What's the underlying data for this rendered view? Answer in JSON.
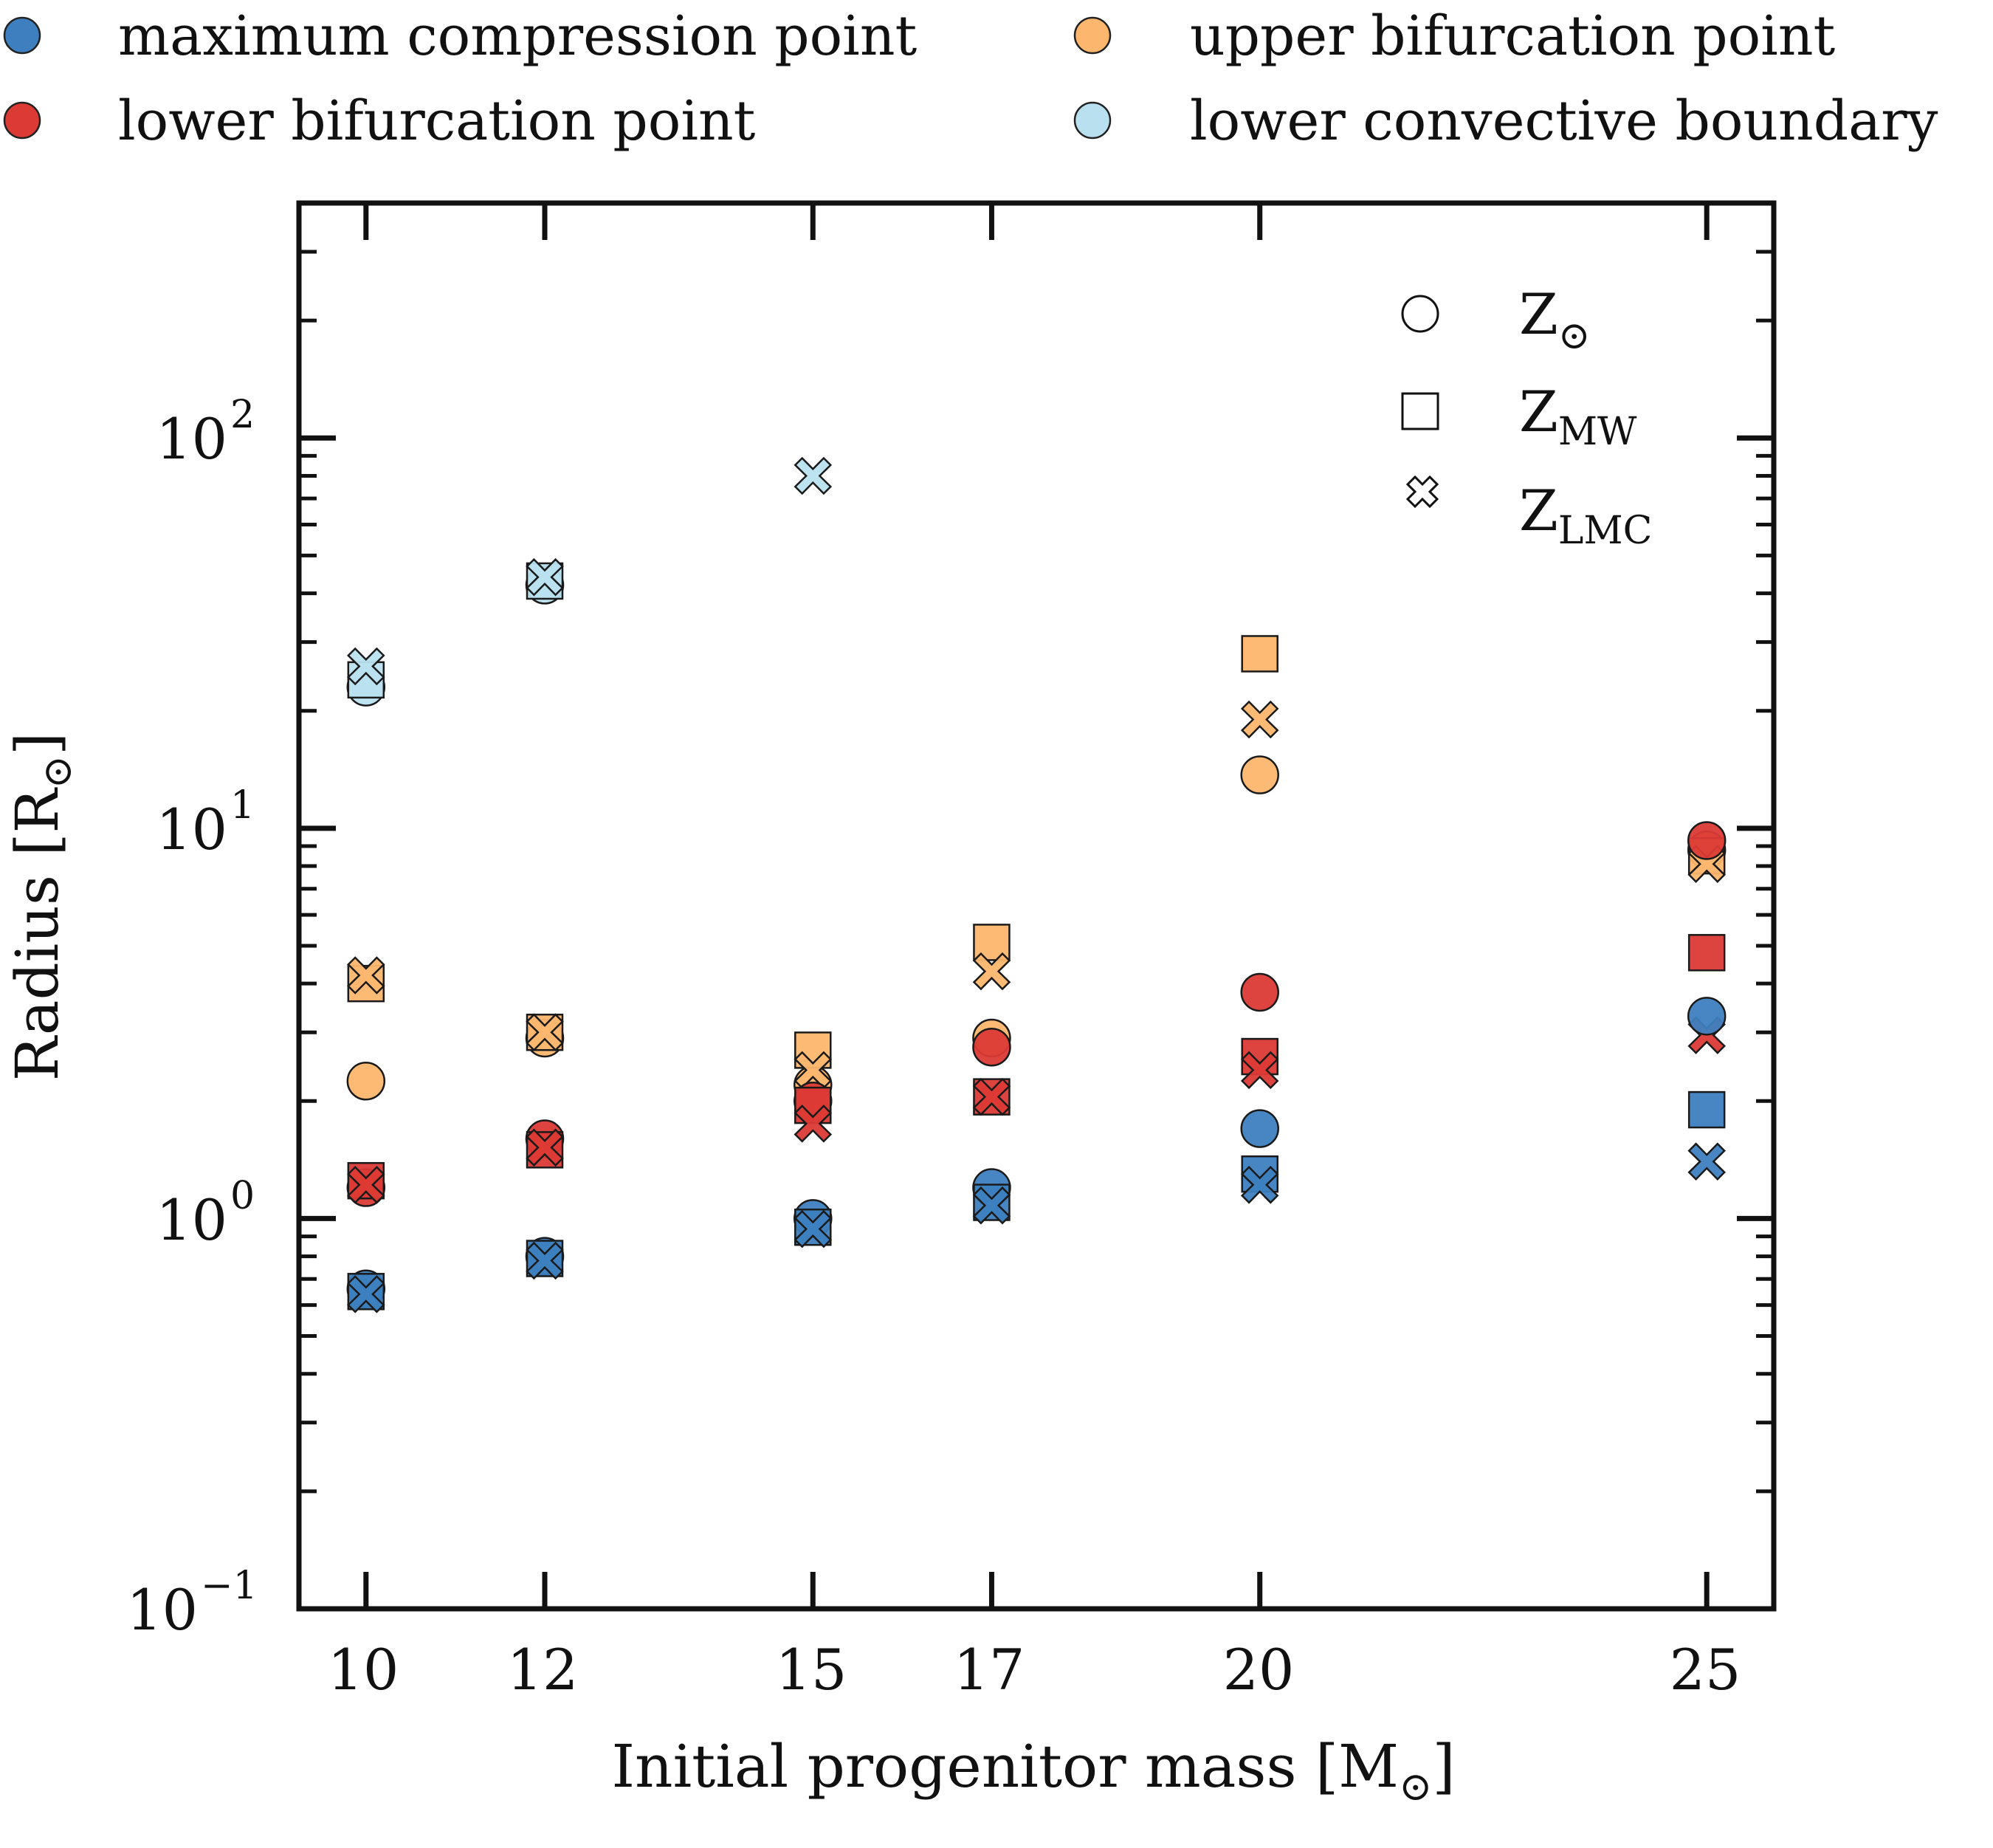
{
  "chart_data": {
    "type": "scatter",
    "xlabel_main": "Initial progenitor mass [M",
    "xlabel_sub": "⊙",
    "xlabel_close": "]",
    "ylabel_main": "Radius [R",
    "ylabel_sub": "⊙",
    "ylabel_close": "]",
    "xscale": "linear",
    "yscale": "log",
    "xlim": [
      9.25,
      25.75
    ],
    "ylim": [
      0.1,
      400
    ],
    "xticks": [
      10,
      12,
      15,
      17,
      20,
      25
    ],
    "xtick_labels": [
      "10",
      "12",
      "15",
      "17",
      "20",
      "25"
    ],
    "yticks_major": [
      {
        "value": 0.1,
        "base": "10",
        "exp": "−1"
      },
      {
        "value": 1,
        "base": "10",
        "exp": "0"
      },
      {
        "value": 10,
        "base": "10",
        "exp": "1"
      },
      {
        "value": 100,
        "base": "10",
        "exp": "2"
      }
    ],
    "legend_colors": {
      "placement": "above-plot",
      "entries": [
        {
          "label": "maximum compression point",
          "color": "#3d7fbf"
        },
        {
          "label": "upper bifurcation point",
          "color": "#fdb66e"
        },
        {
          "label": "lower bifurcation point",
          "color": "#dc3a35"
        },
        {
          "label": "lower convective boundary",
          "color": "#b9e0ef"
        }
      ]
    },
    "legend_markers": {
      "placement": "top-right",
      "entries": [
        {
          "marker": "circle",
          "label": "Z",
          "sub": "⊙"
        },
        {
          "marker": "square",
          "label": "Z",
          "sub": "MW"
        },
        {
          "marker": "cross",
          "label": "Z",
          "sub": "LMC"
        }
      ]
    },
    "series": [
      {
        "name": "lower convective boundary",
        "color": "#b9e0ef",
        "points": [
          {
            "x": 10,
            "y": 23,
            "m": "circle"
          },
          {
            "x": 10,
            "y": 24,
            "m": "square"
          },
          {
            "x": 10,
            "y": 26,
            "m": "cross"
          },
          {
            "x": 12,
            "y": 42,
            "m": "circle"
          },
          {
            "x": 12,
            "y": 43,
            "m": "square"
          },
          {
            "x": 12,
            "y": 44,
            "m": "cross"
          },
          {
            "x": 15,
            "y": 80,
            "m": "cross"
          }
        ]
      },
      {
        "name": "upper bifurcation point",
        "color": "#fdb66e",
        "points": [
          {
            "x": 10,
            "y": 2.25,
            "m": "circle"
          },
          {
            "x": 10,
            "y": 4.0,
            "m": "square"
          },
          {
            "x": 10,
            "y": 4.2,
            "m": "cross"
          },
          {
            "x": 12,
            "y": 2.9,
            "m": "circle"
          },
          {
            "x": 12,
            "y": 3.0,
            "m": "square"
          },
          {
            "x": 12,
            "y": 3.0,
            "m": "cross"
          },
          {
            "x": 15,
            "y": 2.2,
            "m": "circle"
          },
          {
            "x": 15,
            "y": 2.7,
            "m": "square"
          },
          {
            "x": 15,
            "y": 2.4,
            "m": "cross"
          },
          {
            "x": 17,
            "y": 2.9,
            "m": "circle"
          },
          {
            "x": 17,
            "y": 5.1,
            "m": "square"
          },
          {
            "x": 17,
            "y": 4.3,
            "m": "cross"
          },
          {
            "x": 20,
            "y": 13.7,
            "m": "circle"
          },
          {
            "x": 20,
            "y": 28,
            "m": "square"
          },
          {
            "x": 20,
            "y": 19,
            "m": "cross"
          },
          {
            "x": 25,
            "y": 8.8,
            "m": "circle"
          },
          {
            "x": 25,
            "y": 8.5,
            "m": "square"
          },
          {
            "x": 25,
            "y": 8.1,
            "m": "cross"
          }
        ]
      },
      {
        "name": "lower bifurcation point",
        "color": "#dc3a35",
        "points": [
          {
            "x": 10,
            "y": 1.2,
            "m": "circle"
          },
          {
            "x": 10,
            "y": 1.25,
            "m": "square"
          },
          {
            "x": 10,
            "y": 1.22,
            "m": "cross"
          },
          {
            "x": 12,
            "y": 1.6,
            "m": "circle"
          },
          {
            "x": 12,
            "y": 1.5,
            "m": "square"
          },
          {
            "x": 12,
            "y": 1.52,
            "m": "cross"
          },
          {
            "x": 15,
            "y": 2.0,
            "m": "circle"
          },
          {
            "x": 15,
            "y": 1.95,
            "m": "square"
          },
          {
            "x": 15,
            "y": 1.75,
            "m": "cross"
          },
          {
            "x": 17,
            "y": 2.75,
            "m": "circle"
          },
          {
            "x": 17,
            "y": 2.05,
            "m": "square"
          },
          {
            "x": 17,
            "y": 2.05,
            "m": "cross"
          },
          {
            "x": 20,
            "y": 3.8,
            "m": "circle"
          },
          {
            "x": 20,
            "y": 2.6,
            "m": "square"
          },
          {
            "x": 20,
            "y": 2.4,
            "m": "cross"
          },
          {
            "x": 25,
            "y": 9.3,
            "m": "circle"
          },
          {
            "x": 25,
            "y": 4.8,
            "m": "square"
          },
          {
            "x": 25,
            "y": 2.95,
            "m": "cross"
          }
        ]
      },
      {
        "name": "maximum compression point",
        "color": "#3d7fbf",
        "points": [
          {
            "x": 10,
            "y": 0.66,
            "m": "circle"
          },
          {
            "x": 10,
            "y": 0.65,
            "m": "square"
          },
          {
            "x": 10,
            "y": 0.64,
            "m": "cross"
          },
          {
            "x": 12,
            "y": 0.8,
            "m": "circle"
          },
          {
            "x": 12,
            "y": 0.79,
            "m": "square"
          },
          {
            "x": 12,
            "y": 0.78,
            "m": "cross"
          },
          {
            "x": 15,
            "y": 1.0,
            "m": "circle"
          },
          {
            "x": 15,
            "y": 0.95,
            "m": "square"
          },
          {
            "x": 15,
            "y": 0.94,
            "m": "cross"
          },
          {
            "x": 17,
            "y": 1.2,
            "m": "circle"
          },
          {
            "x": 17,
            "y": 1.1,
            "m": "square"
          },
          {
            "x": 17,
            "y": 1.08,
            "m": "cross"
          },
          {
            "x": 20,
            "y": 1.7,
            "m": "circle"
          },
          {
            "x": 20,
            "y": 1.3,
            "m": "square"
          },
          {
            "x": 20,
            "y": 1.22,
            "m": "cross"
          },
          {
            "x": 25,
            "y": 3.3,
            "m": "circle"
          },
          {
            "x": 25,
            "y": 1.9,
            "m": "square"
          },
          {
            "x": 25,
            "y": 1.4,
            "m": "cross"
          }
        ]
      }
    ]
  }
}
